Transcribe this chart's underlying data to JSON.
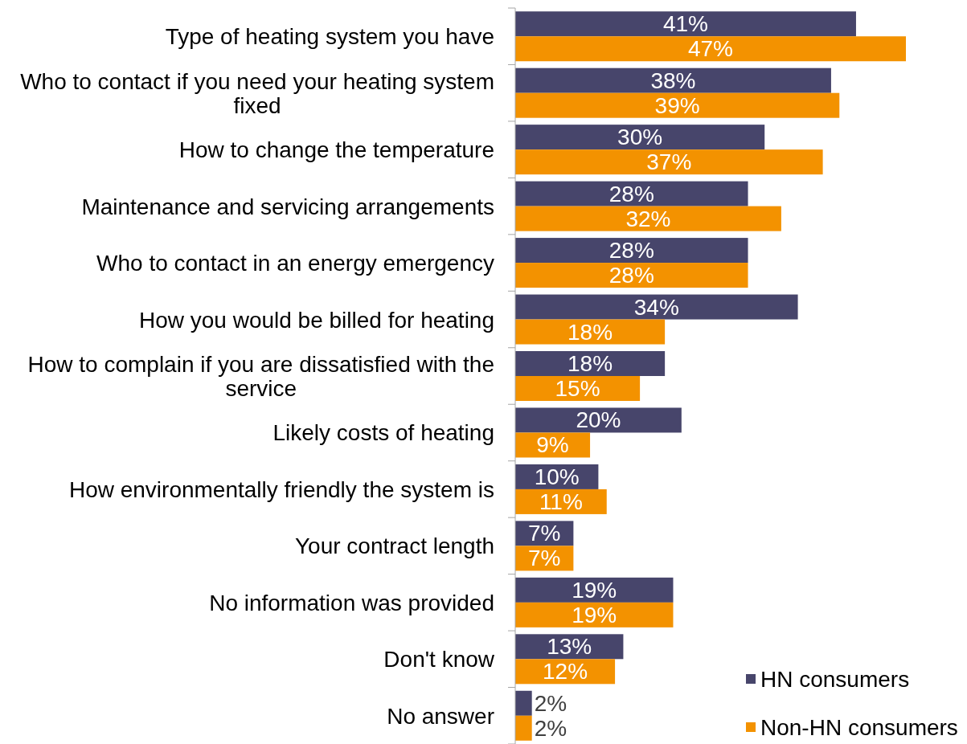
{
  "chart_data": {
    "type": "bar",
    "orientation": "horizontal",
    "categories": [
      "Type of heating system you have",
      "Who to contact if you need your heating system fixed",
      "How to change the temperature ",
      "Maintenance and servicing arrangements",
      "Who to contact in an energy emergency",
      "How you would be billed for heating",
      "How to complain if you are dissatisfied with the service",
      "Likely costs of  heating",
      "How environmentally friendly the system is",
      "Your contract length ",
      "No information was provided",
      "Don't know",
      "No answer"
    ],
    "series": [
      {
        "name": "HN consumers",
        "color": "#47456b",
        "values": [
          41,
          38,
          30,
          28,
          28,
          34,
          18,
          20,
          10,
          7,
          19,
          13,
          2
        ],
        "value_labels": [
          "41%",
          "38%",
          "30%",
          "28%",
          "28%",
          "34%",
          "18%",
          "20%",
          "10%",
          "7%",
          "19%",
          "13%",
          "2%"
        ]
      },
      {
        "name": "Non-HN consumers",
        "color": "#f39200",
        "values": [
          47,
          39,
          37,
          32,
          28,
          18,
          15,
          9,
          11,
          7,
          19,
          12,
          2
        ],
        "value_labels": [
          "47%",
          "39%",
          "37%",
          "32%",
          "28%",
          "18%",
          "15%",
          "9%",
          "11%",
          "7%",
          "19%",
          "12%",
          "2%"
        ]
      }
    ],
    "legend": "bottom right"
  }
}
